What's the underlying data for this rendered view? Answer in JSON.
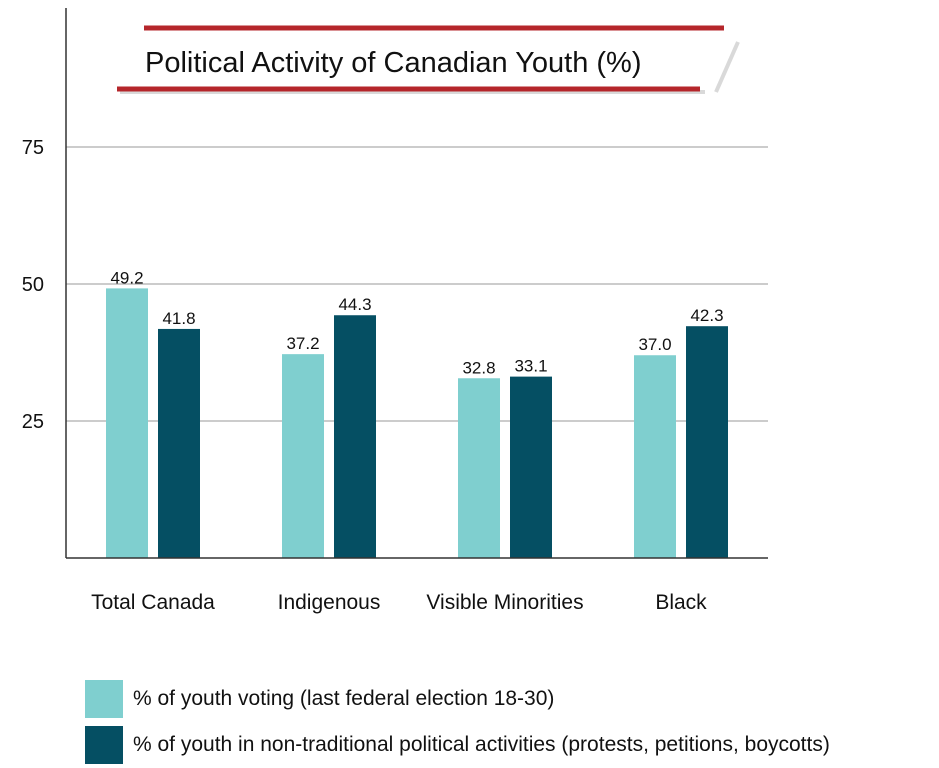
{
  "chart_data": {
    "type": "bar",
    "title": "Political Activity of Canadian Youth (%)",
    "categories": [
      "Total Canada",
      "Indigenous",
      "Visible Minorities",
      "Black"
    ],
    "series": [
      {
        "name": "% of youth voting (last federal election 18-30)",
        "values": [
          49.2,
          37.2,
          32.8,
          37.0
        ],
        "labels": [
          "49.2",
          "37.2",
          "32.8",
          "37.0"
        ],
        "color": "#7fcfcf"
      },
      {
        "name": "% of youth in non-traditional political activities (protests, petitions, boycotts)",
        "values": [
          41.8,
          44.3,
          33.1,
          42.3
        ],
        "labels": [
          "41.8",
          "44.3",
          "33.1",
          "42.3"
        ],
        "color": "#054f63"
      }
    ],
    "yticks": [
      "25",
      "50",
      "75"
    ],
    "ylim": [
      0,
      100
    ],
    "grid": true,
    "legend": "bottom-left",
    "accent_color": "#b5262b"
  }
}
